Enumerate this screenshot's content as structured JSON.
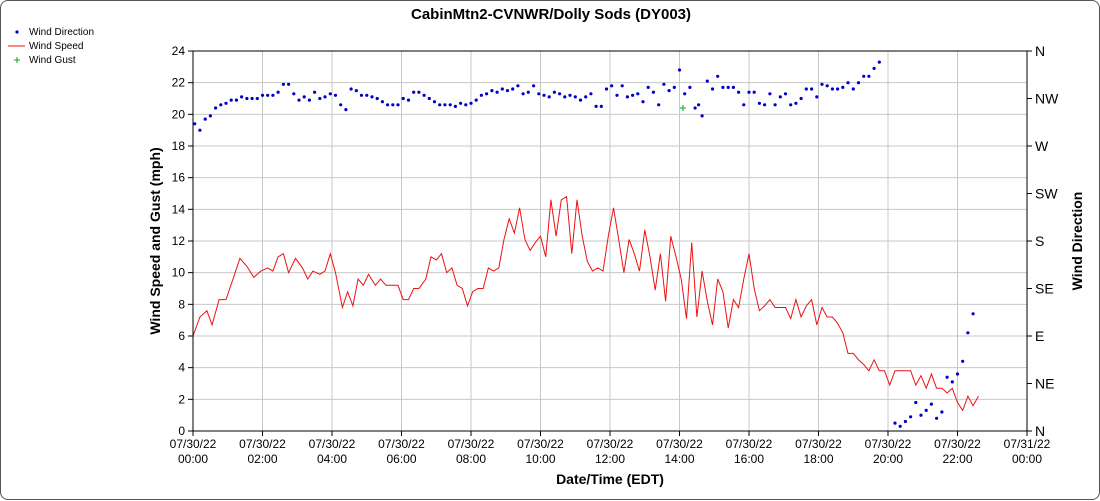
{
  "chart_data": {
    "type": "line",
    "title": "CabinMtn2-CVNWR/Dolly Sods (DY003)",
    "xlabel": "Date/Time (EDT)",
    "ylabel": "Wind Speed and Gust (mph)",
    "y2label": "Wind Direction",
    "ylim": [
      0,
      24
    ],
    "y_ticks": [
      "0",
      "2",
      "4",
      "6",
      "8",
      "10",
      "12",
      "14",
      "16",
      "18",
      "20",
      "22",
      "24"
    ],
    "y2_ticks": [
      "N",
      "NE",
      "E",
      "SE",
      "S",
      "SW",
      "W",
      "NW",
      "N"
    ],
    "x_range_hours": [
      0,
      24
    ],
    "x_ticks": [
      {
        "date": "07/30/22",
        "time": "00:00"
      },
      {
        "date": "07/30/22",
        "time": "02:00"
      },
      {
        "date": "07/30/22",
        "time": "04:00"
      },
      {
        "date": "07/30/22",
        "time": "06:00"
      },
      {
        "date": "07/30/22",
        "time": "08:00"
      },
      {
        "date": "07/30/22",
        "time": "10:00"
      },
      {
        "date": "07/30/22",
        "time": "12:00"
      },
      {
        "date": "07/30/22",
        "time": "14:00"
      },
      {
        "date": "07/30/22",
        "time": "16:00"
      },
      {
        "date": "07/30/22",
        "time": "18:00"
      },
      {
        "date": "07/30/22",
        "time": "20:00"
      },
      {
        "date": "07/30/22",
        "time": "22:00"
      },
      {
        "date": "07/31/22",
        "time": "00:00"
      }
    ],
    "grid": true,
    "legend_position": "top-left",
    "legend": [
      {
        "label": "Wind Direction",
        "marker": "dot",
        "color": "#0000cc"
      },
      {
        "label": "Wind Speed",
        "marker": "line",
        "color": "#ee1111"
      },
      {
        "label": "Wind Gust",
        "marker": "plus",
        "color": "#11aa11"
      }
    ],
    "series": [
      {
        "name": "Wind Speed",
        "color": "#ee1111",
        "points": [
          [
            0.0,
            6.0
          ],
          [
            0.2,
            7.2
          ],
          [
            0.4,
            7.6
          ],
          [
            0.55,
            6.7
          ],
          [
            0.75,
            8.3
          ],
          [
            0.95,
            8.3
          ],
          [
            1.15,
            9.6
          ],
          [
            1.35,
            10.9
          ],
          [
            1.55,
            10.4
          ],
          [
            1.75,
            9.7
          ],
          [
            1.95,
            10.1
          ],
          [
            2.15,
            10.3
          ],
          [
            2.3,
            10.1
          ],
          [
            2.45,
            11.0
          ],
          [
            2.6,
            11.2
          ],
          [
            2.75,
            10.0
          ],
          [
            2.95,
            10.9
          ],
          [
            3.15,
            10.3
          ],
          [
            3.3,
            9.6
          ],
          [
            3.45,
            10.1
          ],
          [
            3.65,
            9.9
          ],
          [
            3.8,
            10.1
          ],
          [
            3.95,
            11.2
          ],
          [
            4.1,
            10.0
          ],
          [
            4.3,
            7.8
          ],
          [
            4.45,
            8.8
          ],
          [
            4.6,
            7.9
          ],
          [
            4.75,
            9.6
          ],
          [
            4.9,
            9.2
          ],
          [
            5.05,
            9.9
          ],
          [
            5.25,
            9.2
          ],
          [
            5.4,
            9.6
          ],
          [
            5.55,
            9.2
          ],
          [
            5.75,
            9.2
          ],
          [
            5.9,
            9.2
          ],
          [
            6.05,
            8.3
          ],
          [
            6.2,
            8.3
          ],
          [
            6.35,
            9.0
          ],
          [
            6.5,
            9.0
          ],
          [
            6.7,
            9.6
          ],
          [
            6.85,
            11.0
          ],
          [
            7.0,
            10.8
          ],
          [
            7.15,
            11.2
          ],
          [
            7.3,
            10.0
          ],
          [
            7.45,
            10.3
          ],
          [
            7.6,
            9.2
          ],
          [
            7.75,
            9.0
          ],
          [
            7.9,
            7.9
          ],
          [
            8.05,
            8.8
          ],
          [
            8.2,
            9.0
          ],
          [
            8.35,
            9.0
          ],
          [
            8.5,
            10.3
          ],
          [
            8.65,
            10.1
          ],
          [
            8.8,
            10.3
          ],
          [
            8.95,
            12.1
          ],
          [
            9.1,
            13.4
          ],
          [
            9.25,
            12.5
          ],
          [
            9.4,
            14.1
          ],
          [
            9.55,
            12.1
          ],
          [
            9.7,
            11.4
          ],
          [
            9.85,
            11.9
          ],
          [
            10.0,
            12.3
          ],
          [
            10.15,
            11.0
          ],
          [
            10.3,
            14.6
          ],
          [
            10.45,
            12.3
          ],
          [
            10.6,
            14.6
          ],
          [
            10.75,
            14.8
          ],
          [
            10.9,
            11.2
          ],
          [
            11.05,
            14.6
          ],
          [
            11.2,
            12.3
          ],
          [
            11.35,
            10.7
          ],
          [
            11.5,
            10.1
          ],
          [
            11.65,
            10.3
          ],
          [
            11.8,
            10.1
          ],
          [
            11.95,
            12.3
          ],
          [
            12.1,
            14.1
          ],
          [
            12.25,
            12.1
          ],
          [
            12.4,
            10.0
          ],
          [
            12.55,
            12.1
          ],
          [
            12.7,
            11.2
          ],
          [
            12.85,
            10.1
          ],
          [
            13.0,
            12.7
          ],
          [
            13.15,
            11.0
          ],
          [
            13.3,
            8.9
          ],
          [
            13.45,
            11.2
          ],
          [
            13.6,
            8.2
          ],
          [
            13.75,
            12.3
          ],
          [
            13.9,
            11.0
          ],
          [
            14.05,
            9.6
          ],
          [
            14.2,
            7.1
          ],
          [
            14.35,
            11.9
          ],
          [
            14.5,
            7.2
          ],
          [
            14.65,
            10.1
          ],
          [
            14.8,
            8.2
          ],
          [
            14.95,
            6.7
          ],
          [
            15.1,
            9.6
          ],
          [
            15.25,
            8.8
          ],
          [
            15.4,
            6.5
          ],
          [
            15.55,
            8.3
          ],
          [
            15.7,
            7.8
          ],
          [
            15.85,
            9.6
          ],
          [
            16.0,
            11.2
          ],
          [
            16.15,
            9.0
          ],
          [
            16.3,
            7.6
          ],
          [
            16.45,
            7.9
          ],
          [
            16.6,
            8.3
          ],
          [
            16.75,
            7.8
          ],
          [
            16.9,
            7.8
          ],
          [
            17.05,
            7.8
          ],
          [
            17.2,
            7.1
          ],
          [
            17.35,
            8.3
          ],
          [
            17.5,
            7.2
          ],
          [
            17.65,
            7.9
          ],
          [
            17.8,
            8.3
          ],
          [
            17.95,
            6.7
          ],
          [
            18.1,
            7.8
          ],
          [
            18.25,
            7.2
          ],
          [
            18.4,
            7.2
          ],
          [
            18.55,
            6.8
          ],
          [
            18.7,
            6.2
          ],
          [
            18.85,
            4.9
          ],
          [
            19.0,
            4.9
          ],
          [
            19.15,
            4.5
          ],
          [
            19.3,
            4.2
          ],
          [
            19.45,
            3.8
          ],
          [
            19.6,
            4.5
          ],
          [
            19.75,
            3.8
          ],
          [
            19.9,
            3.8
          ],
          [
            20.05,
            2.9
          ],
          [
            20.2,
            3.8
          ],
          [
            20.35,
            3.8
          ],
          [
            20.5,
            3.8
          ],
          [
            20.65,
            3.8
          ],
          [
            20.8,
            2.9
          ],
          [
            20.95,
            3.5
          ],
          [
            21.1,
            2.7
          ],
          [
            21.25,
            3.6
          ],
          [
            21.4,
            2.7
          ],
          [
            21.55,
            2.7
          ],
          [
            21.7,
            2.4
          ],
          [
            21.85,
            2.7
          ],
          [
            22.0,
            1.8
          ],
          [
            22.15,
            1.3
          ],
          [
            22.3,
            2.2
          ],
          [
            22.45,
            1.6
          ],
          [
            22.6,
            2.2
          ]
        ]
      },
      {
        "name": "Wind Direction",
        "color": "#0000cc",
        "points": [
          [
            0.05,
            19.4
          ],
          [
            0.2,
            19.0
          ],
          [
            0.35,
            19.7
          ],
          [
            0.5,
            19.9
          ],
          [
            0.65,
            20.4
          ],
          [
            0.8,
            20.6
          ],
          [
            0.95,
            20.7
          ],
          [
            1.1,
            20.9
          ],
          [
            1.25,
            20.9
          ],
          [
            1.4,
            21.1
          ],
          [
            1.55,
            21.0
          ],
          [
            1.7,
            21.0
          ],
          [
            1.85,
            21.0
          ],
          [
            2.0,
            21.2
          ],
          [
            2.15,
            21.2
          ],
          [
            2.3,
            21.2
          ],
          [
            2.45,
            21.4
          ],
          [
            2.6,
            21.9
          ],
          [
            2.75,
            21.9
          ],
          [
            2.9,
            21.3
          ],
          [
            3.05,
            20.9
          ],
          [
            3.2,
            21.1
          ],
          [
            3.35,
            20.9
          ],
          [
            3.5,
            21.4
          ],
          [
            3.65,
            21.0
          ],
          [
            3.8,
            21.1
          ],
          [
            3.95,
            21.3
          ],
          [
            4.1,
            21.2
          ],
          [
            4.25,
            20.6
          ],
          [
            4.4,
            20.3
          ],
          [
            4.55,
            21.6
          ],
          [
            4.7,
            21.5
          ],
          [
            4.85,
            21.2
          ],
          [
            5.0,
            21.2
          ],
          [
            5.15,
            21.1
          ],
          [
            5.3,
            21.0
          ],
          [
            5.45,
            20.8
          ],
          [
            5.6,
            20.6
          ],
          [
            5.75,
            20.6
          ],
          [
            5.9,
            20.6
          ],
          [
            6.05,
            21.0
          ],
          [
            6.2,
            20.9
          ],
          [
            6.35,
            21.4
          ],
          [
            6.5,
            21.4
          ],
          [
            6.65,
            21.2
          ],
          [
            6.8,
            21.0
          ],
          [
            6.95,
            20.8
          ],
          [
            7.1,
            20.6
          ],
          [
            7.25,
            20.6
          ],
          [
            7.4,
            20.6
          ],
          [
            7.55,
            20.5
          ],
          [
            7.7,
            20.7
          ],
          [
            7.85,
            20.6
          ],
          [
            8.0,
            20.7
          ],
          [
            8.15,
            20.9
          ],
          [
            8.3,
            21.2
          ],
          [
            8.45,
            21.3
          ],
          [
            8.6,
            21.5
          ],
          [
            8.75,
            21.4
          ],
          [
            8.9,
            21.6
          ],
          [
            9.05,
            21.5
          ],
          [
            9.2,
            21.6
          ],
          [
            9.35,
            21.8
          ],
          [
            9.5,
            21.3
          ],
          [
            9.65,
            21.4
          ],
          [
            9.8,
            21.8
          ],
          [
            9.95,
            21.3
          ],
          [
            10.1,
            21.2
          ],
          [
            10.25,
            21.1
          ],
          [
            10.4,
            21.4
          ],
          [
            10.55,
            21.3
          ],
          [
            10.7,
            21.1
          ],
          [
            10.85,
            21.2
          ],
          [
            11.0,
            21.1
          ],
          [
            11.15,
            20.9
          ],
          [
            11.3,
            21.1
          ],
          [
            11.45,
            21.3
          ],
          [
            11.6,
            20.5
          ],
          [
            11.75,
            20.5
          ],
          [
            11.9,
            21.6
          ],
          [
            12.05,
            21.8
          ],
          [
            12.2,
            21.2
          ],
          [
            12.35,
            21.8
          ],
          [
            12.5,
            21.1
          ],
          [
            12.65,
            21.2
          ],
          [
            12.8,
            21.3
          ],
          [
            12.95,
            20.8
          ],
          [
            13.1,
            21.7
          ],
          [
            13.25,
            21.4
          ],
          [
            13.4,
            20.6
          ],
          [
            13.55,
            21.9
          ],
          [
            13.7,
            21.5
          ],
          [
            13.85,
            21.7
          ],
          [
            14.0,
            22.8
          ],
          [
            14.15,
            21.3
          ],
          [
            14.3,
            21.7
          ],
          [
            14.45,
            20.4
          ],
          [
            14.55,
            20.6
          ],
          [
            14.65,
            19.9
          ],
          [
            14.8,
            22.1
          ],
          [
            14.95,
            21.6
          ],
          [
            15.1,
            22.4
          ],
          [
            15.25,
            21.7
          ],
          [
            15.4,
            21.7
          ],
          [
            15.55,
            21.7
          ],
          [
            15.7,
            21.4
          ],
          [
            15.85,
            20.6
          ],
          [
            16.0,
            21.4
          ],
          [
            16.15,
            21.4
          ],
          [
            16.3,
            20.7
          ],
          [
            16.45,
            20.6
          ],
          [
            16.6,
            21.3
          ],
          [
            16.75,
            20.6
          ],
          [
            16.9,
            21.1
          ],
          [
            17.05,
            21.3
          ],
          [
            17.2,
            20.6
          ],
          [
            17.35,
            20.7
          ],
          [
            17.5,
            21.0
          ],
          [
            17.65,
            21.6
          ],
          [
            17.8,
            21.6
          ],
          [
            17.95,
            21.1
          ],
          [
            18.1,
            21.9
          ],
          [
            18.25,
            21.8
          ],
          [
            18.4,
            21.6
          ],
          [
            18.55,
            21.6
          ],
          [
            18.7,
            21.7
          ],
          [
            18.85,
            22.0
          ],
          [
            19.0,
            21.6
          ],
          [
            19.15,
            22.0
          ],
          [
            19.3,
            22.4
          ],
          [
            19.45,
            22.4
          ],
          [
            19.6,
            22.9
          ],
          [
            19.75,
            23.3
          ],
          [
            20.2,
            0.5
          ],
          [
            20.35,
            0.3
          ],
          [
            20.5,
            0.6
          ],
          [
            20.65,
            0.9
          ],
          [
            20.8,
            1.8
          ],
          [
            20.95,
            1.0
          ],
          [
            21.1,
            1.3
          ],
          [
            21.25,
            1.7
          ],
          [
            21.4,
            0.8
          ],
          [
            21.55,
            1.2
          ],
          [
            21.7,
            3.4
          ],
          [
            21.85,
            3.1
          ],
          [
            22.0,
            3.6
          ],
          [
            22.15,
            4.4
          ],
          [
            22.3,
            6.2
          ],
          [
            22.45,
            7.4
          ]
        ]
      },
      {
        "name": "Wind Gust",
        "color": "#11aa11",
        "points": [
          [
            14.1,
            20.4
          ]
        ]
      }
    ]
  }
}
